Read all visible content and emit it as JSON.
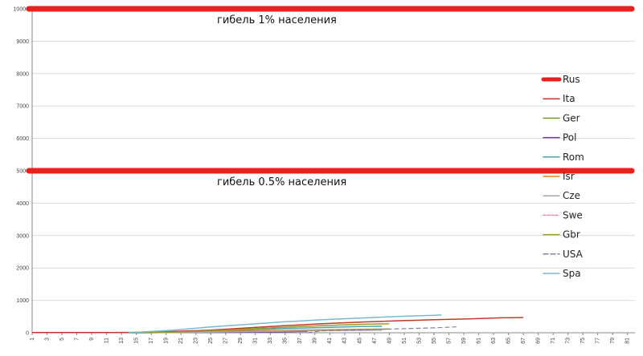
{
  "chart_data": {
    "type": "line",
    "y_ticks": [
      0,
      1000,
      2000,
      3000,
      4000,
      5000,
      6000,
      7000,
      8000,
      9000,
      10000
    ],
    "ylim": [
      0,
      10000
    ],
    "xlim": [
      1,
      82
    ],
    "x_tick_labels": [
      "1",
      "3",
      "5",
      "7",
      "9",
      "11",
      "13",
      "15",
      "17",
      "19",
      "21",
      "23",
      "25",
      "27",
      "29",
      "31",
      "33",
      "35",
      "37",
      "39",
      "41",
      "43",
      "45",
      "47",
      "49",
      "51",
      "53",
      "55",
      "57",
      "59",
      "61",
      "63",
      "65",
      "67",
      "69",
      "71",
      "73",
      "75",
      "77",
      "79",
      "81"
    ],
    "grid": true,
    "legend_position": "right",
    "annotations": [
      {
        "text": "гибель 1% населения",
        "y": 10000
      },
      {
        "text": "гибель 0.5% населения",
        "y": 5000
      }
    ],
    "reference_lines": [
      {
        "y": 10000,
        "color": "#e8211f"
      },
      {
        "y": 5000,
        "color": "#e8211f"
      }
    ],
    "series": [
      {
        "name": "Rus",
        "color": "#e8211f",
        "dash": "",
        "width": 5,
        "points": []
      },
      {
        "name": "Ita",
        "color": "#c0392b",
        "dash": "",
        "width": 1.5,
        "points": [
          [
            1,
            5
          ],
          [
            10,
            5
          ],
          [
            14,
            10
          ],
          [
            20,
            40
          ],
          [
            25,
            80
          ],
          [
            30,
            150
          ],
          [
            35,
            220
          ],
          [
            40,
            280
          ],
          [
            45,
            330
          ],
          [
            50,
            370
          ],
          [
            55,
            400
          ],
          [
            60,
            430
          ],
          [
            64,
            460
          ],
          [
            67,
            470
          ]
        ]
      },
      {
        "name": "Ger",
        "color": "#7b9a2b",
        "dash": "",
        "width": 1.5,
        "points": [
          [
            14,
            0
          ],
          [
            20,
            10
          ],
          [
            25,
            30
          ],
          [
            30,
            50
          ],
          [
            35,
            70
          ],
          [
            40,
            90
          ],
          [
            45,
            105
          ],
          [
            49,
            115
          ]
        ]
      },
      {
        "name": "Pol",
        "color": "#6a3d9a",
        "dash": "",
        "width": 1.5,
        "points": [
          [
            14,
            0
          ],
          [
            20,
            5
          ],
          [
            25,
            10
          ],
          [
            30,
            20
          ],
          [
            35,
            30
          ],
          [
            38,
            40
          ]
        ]
      },
      {
        "name": "Rom",
        "color": "#4aa3a8",
        "dash": "",
        "width": 1.5,
        "points": [
          [
            14,
            0
          ],
          [
            20,
            10
          ],
          [
            25,
            40
          ],
          [
            30,
            90
          ],
          [
            35,
            130
          ],
          [
            40,
            160
          ],
          [
            45,
            190
          ],
          [
            48,
            200
          ]
        ]
      },
      {
        "name": "Isr",
        "color": "#e67e22",
        "dash": "",
        "width": 1.5,
        "points": [
          [
            14,
            0
          ],
          [
            20,
            15
          ],
          [
            25,
            35
          ],
          [
            30,
            55
          ],
          [
            35,
            70
          ],
          [
            40,
            85
          ],
          [
            45,
            95
          ],
          [
            47,
            100
          ]
        ]
      },
      {
        "name": "Cze",
        "color": "#a9a9a9",
        "dash": "",
        "width": 1.5,
        "points": [
          [
            14,
            0
          ],
          [
            20,
            10
          ],
          [
            25,
            20
          ],
          [
            30,
            35
          ],
          [
            35,
            50
          ],
          [
            40,
            65
          ],
          [
            45,
            75
          ],
          [
            48,
            80
          ]
        ]
      },
      {
        "name": "Swe",
        "color": "#e58aa0",
        "dash": "3,2",
        "width": 1.2,
        "points": [
          [
            14,
            0
          ],
          [
            20,
            20
          ],
          [
            25,
            60
          ],
          [
            30,
            110
          ],
          [
            35,
            170
          ],
          [
            40,
            220
          ],
          [
            45,
            260
          ],
          [
            48,
            280
          ]
        ]
      },
      {
        "name": "Gbr",
        "color": "#9c9c2c",
        "dash": "",
        "width": 1.5,
        "points": [
          [
            14,
            0
          ],
          [
            20,
            20
          ],
          [
            25,
            60
          ],
          [
            30,
            120
          ],
          [
            35,
            170
          ],
          [
            40,
            220
          ],
          [
            45,
            260
          ],
          [
            49,
            280
          ]
        ]
      },
      {
        "name": "USA",
        "color": "#8a7f9c",
        "dash": "6,3",
        "width": 1.2,
        "points": [
          [
            38,
            0
          ],
          [
            40,
            60
          ],
          [
            45,
            90
          ],
          [
            50,
            120
          ],
          [
            55,
            150
          ],
          [
            58,
            180
          ]
        ]
      },
      {
        "name": "Spa",
        "color": "#7ab9d3",
        "dash": "",
        "width": 1.5,
        "points": [
          [
            14,
            0
          ],
          [
            17,
            40
          ],
          [
            20,
            80
          ],
          [
            25,
            180
          ],
          [
            30,
            260
          ],
          [
            35,
            340
          ],
          [
            40,
            400
          ],
          [
            45,
            450
          ],
          [
            50,
            500
          ],
          [
            55,
            540
          ],
          [
            56,
            550
          ]
        ]
      }
    ]
  }
}
